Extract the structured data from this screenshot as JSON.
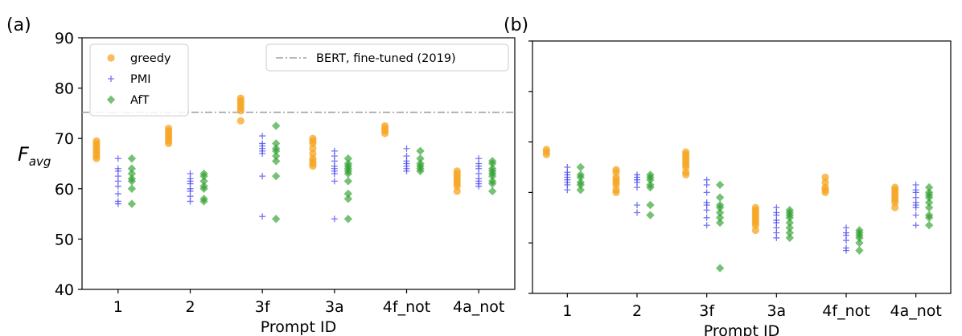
{
  "chart_data": [
    {
      "panel_label": "(a)",
      "type": "scatter",
      "xlabel": "Prompt ID",
      "ylabel_main": "F",
      "ylabel_sub": "avg",
      "ylim": [
        40,
        90
      ],
      "yticks": [
        40,
        50,
        60,
        70,
        80,
        90
      ],
      "show_ytick_labels": true,
      "categories": [
        "1",
        "2",
        "3f",
        "3a",
        "4f_not",
        "4a_not"
      ],
      "reference_line": {
        "label": "BERT, fine-tuned (2019)",
        "value": 75.2,
        "color": "#a0a0a0"
      },
      "legend": {
        "position": "top-left",
        "entries": [
          {
            "name": "greedy",
            "marker": "circle",
            "color": "#f5a623"
          },
          {
            "name": "PMI",
            "marker": "plus",
            "color": "#4545ee"
          },
          {
            "name": "AfT",
            "marker": "diamond",
            "color": "#2ca02c"
          }
        ]
      },
      "series": [
        {
          "name": "greedy",
          "values": [
            [
              69.5,
              69.0,
              68.5,
              68.0,
              67.5,
              67.0,
              66.5,
              66.0
            ],
            [
              72.0,
              71.5,
              71.0,
              70.5,
              70.0,
              69.5,
              69.0
            ],
            [
              78.0,
              77.5,
              77.0,
              76.5,
              76.0,
              75.5,
              73.5
            ],
            [
              70.0,
              69.5,
              69.0,
              68.0,
              67.0,
              66.0,
              65.5,
              65.0,
              64.5
            ],
            [
              72.5,
              72.0,
              71.5,
              71.0
            ],
            [
              63.5,
              63.0,
              62.5,
              62.0,
              61.5,
              61.0,
              60.5,
              59.5
            ]
          ]
        },
        {
          "name": "PMI",
          "values": [
            [
              66.0,
              64.0,
              63.5,
              62.5,
              61.5,
              60.5,
              59.0,
              57.5,
              57.0
            ],
            [
              63.0,
              62.0,
              61.5,
              61.0,
              60.0,
              59.5,
              58.5,
              57.5
            ],
            [
              70.5,
              69.0,
              68.5,
              68.0,
              67.5,
              67.0,
              62.5,
              54.5
            ],
            [
              67.5,
              66.5,
              65.5,
              64.5,
              64.0,
              63.5,
              63.0,
              61.5,
              54.0
            ],
            [
              68.0,
              66.5,
              65.5,
              65.0,
              64.5,
              64.0,
              63.5
            ],
            [
              66.0,
              65.0,
              64.5,
              64.0,
              63.0,
              62.0,
              61.5,
              61.0,
              60.5
            ]
          ]
        },
        {
          "name": "AfT",
          "values": [
            [
              66.0,
              64.0,
              63.0,
              62.0,
              61.5,
              60.0,
              57.0
            ],
            [
              63.0,
              62.5,
              61.5,
              60.5,
              60.0,
              58.0,
              57.5
            ],
            [
              72.5,
              69.0,
              68.0,
              67.5,
              66.5,
              65.5,
              62.5,
              54.0
            ],
            [
              66.0,
              65.0,
              64.5,
              64.0,
              63.5,
              63.0,
              61.5,
              59.0,
              58.0,
              54.0
            ],
            [
              67.5,
              66.0,
              65.0,
              64.5,
              64.0,
              63.5
            ],
            [
              65.5,
              65.0,
              64.0,
              63.5,
              63.0,
              62.5,
              61.5,
              61.0,
              59.5
            ]
          ]
        }
      ]
    },
    {
      "panel_label": "(b)",
      "type": "scatter",
      "xlabel": "Prompt ID",
      "ylim": [
        40,
        90
      ],
      "yticks": [
        40,
        50,
        60,
        70,
        80,
        90
      ],
      "show_ytick_labels": false,
      "categories": [
        "1",
        "2",
        "3f",
        "3a",
        "4f_not",
        "4a_not"
      ],
      "series": [
        {
          "name": "greedy",
          "values": [
            [
              68.5,
              68.0,
              67.5
            ],
            [
              64.5,
              64.0,
              63.0,
              62.5,
              62.0,
              61.5,
              60.5,
              60.0
            ],
            [
              68.0,
              67.5,
              67.0,
              66.5,
              66.0,
              65.5,
              65.0,
              64.0,
              63.5
            ],
            [
              57.0,
              56.5,
              56.0,
              55.5,
              55.0,
              54.5,
              54.0,
              53.5,
              52.5
            ],
            [
              63.0,
              62.0,
              61.0,
              60.5,
              60.0
            ],
            [
              61.0,
              60.5,
              60.0,
              59.5,
              59.0,
              58.5,
              58.0,
              57.0
            ]
          ]
        },
        {
          "name": "PMI",
          "values": [
            [
              65.0,
              64.0,
              63.5,
              63.0,
              62.5,
              62.0,
              61.5,
              60.5
            ],
            [
              63.5,
              63.0,
              62.5,
              62.0,
              61.0,
              57.5,
              56.0
            ],
            [
              62.5,
              61.5,
              60.0,
              58.0,
              57.5,
              56.5,
              55.0,
              53.5
            ],
            [
              57.0,
              56.0,
              55.5,
              54.5,
              54.0,
              53.0,
              52.0,
              51.0
            ],
            [
              53.0,
              52.0,
              51.5,
              50.5,
              49.0,
              48.5
            ],
            [
              61.5,
              60.5,
              60.0,
              59.0,
              58.0,
              57.5,
              57.0,
              55.5,
              53.5
            ]
          ]
        },
        {
          "name": "AfT",
          "values": [
            [
              65.0,
              63.5,
              63.0,
              62.0,
              61.5,
              60.5
            ],
            [
              63.5,
              63.0,
              62.5,
              61.5,
              61.0,
              57.5,
              55.5
            ],
            [
              61.5,
              59.0,
              57.5,
              57.0,
              56.0,
              55.0,
              54.0,
              45.0
            ],
            [
              56.5,
              56.0,
              55.5,
              55.0,
              54.0,
              53.0,
              52.0,
              51.0
            ],
            [
              52.5,
              52.0,
              51.5,
              51.0,
              50.0,
              48.5
            ],
            [
              61.0,
              60.0,
              59.5,
              59.0,
              58.0,
              57.0,
              55.5,
              55.0,
              53.5
            ]
          ]
        }
      ]
    }
  ]
}
